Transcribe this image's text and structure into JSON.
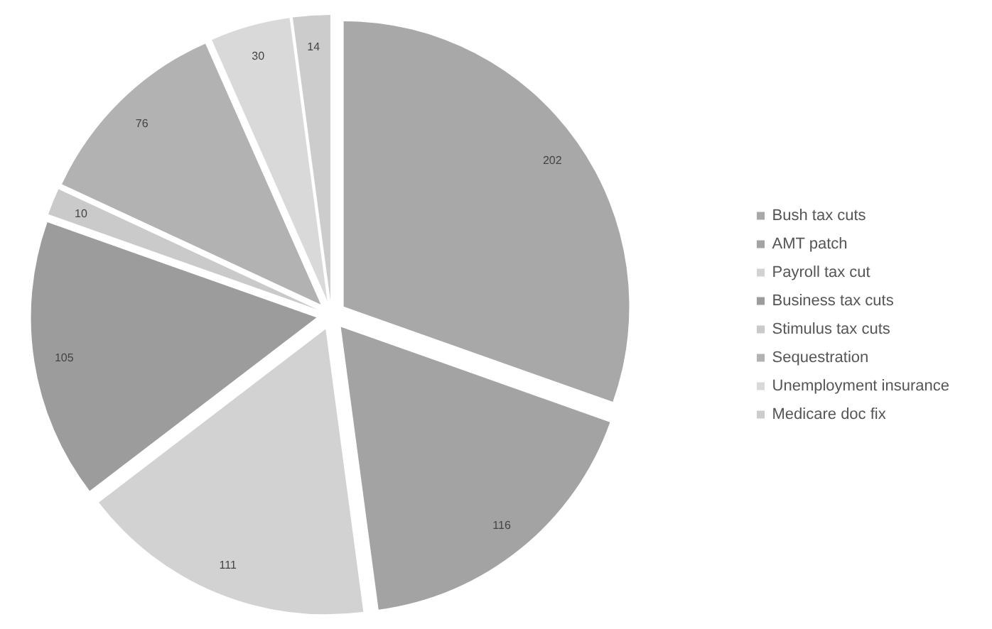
{
  "chart_data": {
    "type": "pie",
    "categories": [
      "Bush tax cuts",
      "AMT patch",
      "Payroll tax cut",
      "Business tax cuts",
      "Stimulus tax cuts",
      "Sequestration",
      "Unemployment insurance",
      "Medicare doc fix"
    ],
    "values": [
      202,
      116,
      111,
      105,
      10,
      76,
      30,
      14
    ],
    "colors": [
      "#a8a8a8",
      "#a3a3a3",
      "#d2d2d2",
      "#9c9c9c",
      "#cacaca",
      "#b2b2b2",
      "#d9d9d9",
      "#cccccc"
    ],
    "data_labels": true,
    "legend": "right"
  }
}
